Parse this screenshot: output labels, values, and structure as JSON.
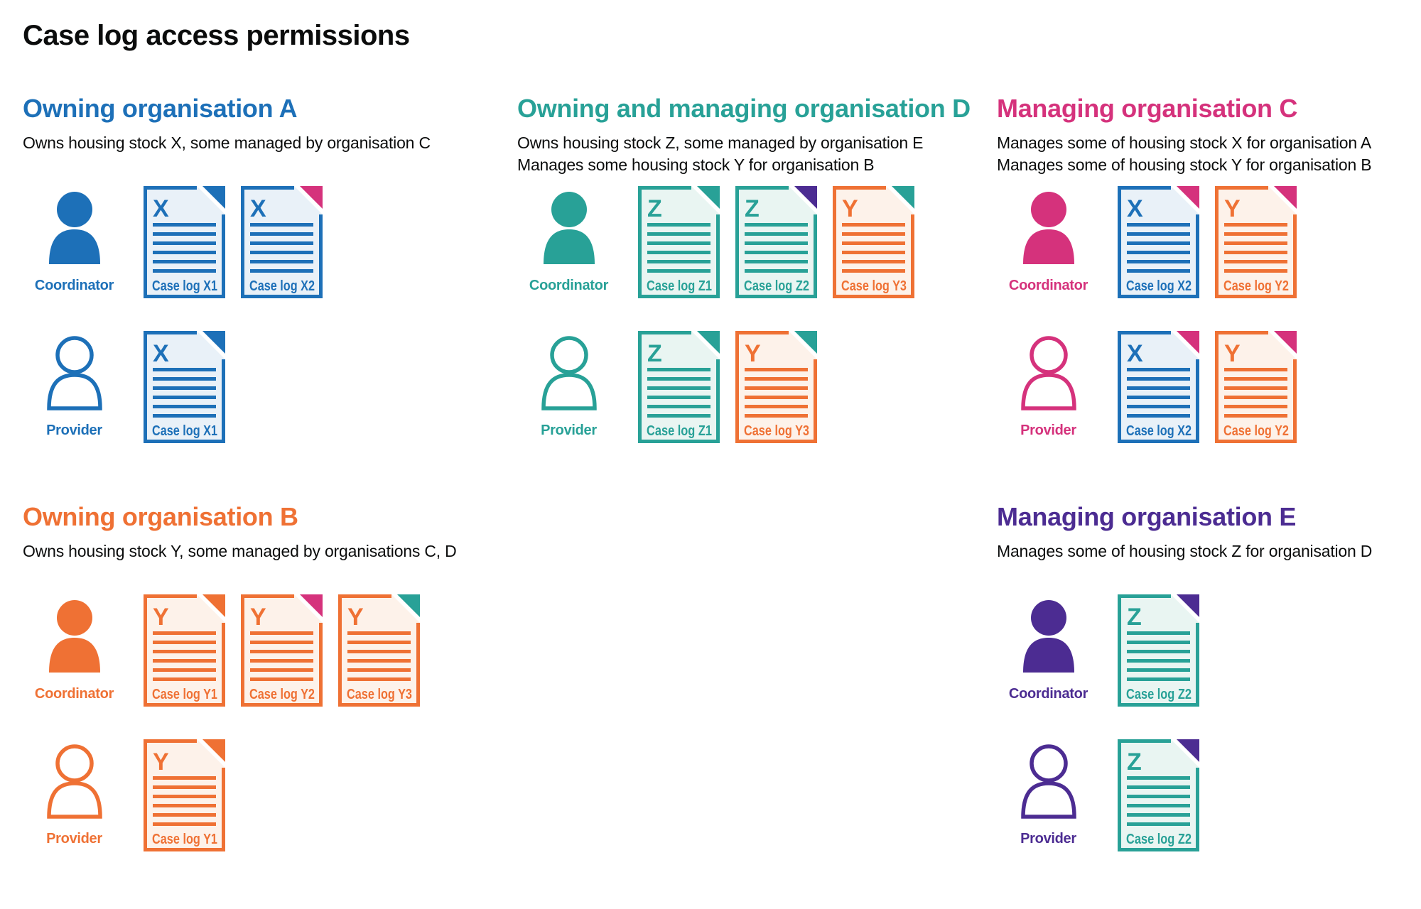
{
  "title": "Case log access permissions",
  "colors": {
    "blue": "#1d70b8",
    "teal": "#28a197",
    "pink": "#d5327c",
    "orange": "#ef7134",
    "purple": "#4c2c92",
    "text": "#0b0c0c",
    "fill_blue": "#e9f1f8",
    "fill_teal": "#e9f5f2",
    "fill_orange": "#fdf2ea"
  },
  "sections": [
    {
      "id": "org-a",
      "title": "Owning organisation A",
      "color": "blue",
      "description": [
        "Owns housing stock X, some managed by organisation C"
      ],
      "rows": [
        {
          "role": "Coordinator",
          "person": "filled",
          "docs": [
            {
              "letter": "X",
              "label": "Case log X1",
              "page": "blue",
              "fold": "blue"
            },
            {
              "letter": "X",
              "label": "Case log X2",
              "page": "blue",
              "fold": "pink"
            }
          ]
        },
        {
          "role": "Provider",
          "person": "outline",
          "docs": [
            {
              "letter": "X",
              "label": "Case log X1",
              "page": "blue",
              "fold": "blue"
            }
          ]
        }
      ]
    },
    {
      "id": "org-d",
      "title": "Owning and managing organisation D",
      "color": "teal",
      "description": [
        "Owns housing stock Z, some managed by organisation E",
        "Manages some housing stock Y for organisation B"
      ],
      "rows": [
        {
          "role": "Coordinator",
          "person": "filled",
          "docs": [
            {
              "letter": "Z",
              "label": "Case log Z1",
              "page": "teal",
              "fold": "teal"
            },
            {
              "letter": "Z",
              "label": "Case log Z2",
              "page": "teal",
              "fold": "purple"
            },
            {
              "letter": "Y",
              "label": "Case log Y3",
              "page": "orange",
              "fold": "teal"
            }
          ]
        },
        {
          "role": "Provider",
          "person": "outline",
          "docs": [
            {
              "letter": "Z",
              "label": "Case log Z1",
              "page": "teal",
              "fold": "teal"
            },
            {
              "letter": "Y",
              "label": "Case log Y3",
              "page": "orange",
              "fold": "teal"
            }
          ]
        }
      ]
    },
    {
      "id": "org-c",
      "title": "Managing organisation C",
      "color": "pink",
      "description": [
        "Manages some of housing stock X for organisation A",
        "Manages some of housing stock Y for organisation B"
      ],
      "rows": [
        {
          "role": "Coordinator",
          "person": "filled",
          "docs": [
            {
              "letter": "X",
              "label": "Case log X2",
              "page": "blue",
              "fold": "pink"
            },
            {
              "letter": "Y",
              "label": "Case log Y2",
              "page": "orange",
              "fold": "pink"
            }
          ]
        },
        {
          "role": "Provider",
          "person": "outline",
          "docs": [
            {
              "letter": "X",
              "label": "Case log X2",
              "page": "blue",
              "fold": "pink"
            },
            {
              "letter": "Y",
              "label": "Case log Y2",
              "page": "orange",
              "fold": "pink"
            }
          ]
        }
      ]
    },
    {
      "id": "org-b",
      "title": "Owning organisation B",
      "color": "orange",
      "description": [
        "Owns housing stock Y, some managed by organisations C, D"
      ],
      "rows": [
        {
          "role": "Coordinator",
          "person": "filled",
          "docs": [
            {
              "letter": "Y",
              "label": "Case log Y1",
              "page": "orange",
              "fold": "orange"
            },
            {
              "letter": "Y",
              "label": "Case log Y2",
              "page": "orange",
              "fold": "pink"
            },
            {
              "letter": "Y",
              "label": "Case log Y3",
              "page": "orange",
              "fold": "teal"
            }
          ]
        },
        {
          "role": "Provider",
          "person": "outline",
          "docs": [
            {
              "letter": "Y",
              "label": "Case log Y1",
              "page": "orange",
              "fold": "orange"
            }
          ]
        }
      ]
    },
    {
      "id": "org-e",
      "title": "Managing organisation E",
      "color": "purple",
      "description": [
        "Manages some of housing stock Z for organisation D"
      ],
      "rows": [
        {
          "role": "Coordinator",
          "person": "filled",
          "docs": [
            {
              "letter": "Z",
              "label": "Case log Z2",
              "page": "teal",
              "fold": "purple"
            }
          ]
        },
        {
          "role": "Provider",
          "person": "outline",
          "docs": [
            {
              "letter": "Z",
              "label": "Case log Z2",
              "page": "teal",
              "fold": "purple"
            }
          ]
        }
      ]
    }
  ]
}
